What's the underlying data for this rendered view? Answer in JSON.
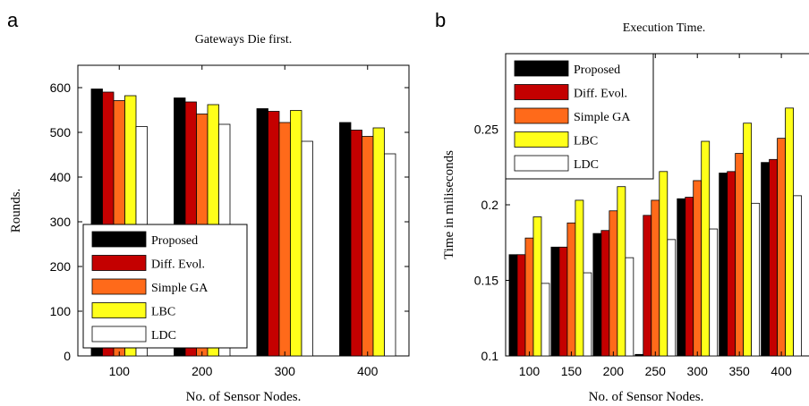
{
  "chart_data": [
    {
      "panel_label": "a",
      "type": "bar",
      "title": "Gateways Die first.",
      "xlabel": "No. of Sensor Nodes.",
      "ylabel": "Rounds.",
      "categories": [
        "100",
        "200",
        "300",
        "400"
      ],
      "ylim": [
        0,
        650
      ],
      "yticks": [
        "0",
        "100",
        "200",
        "300",
        "400",
        "500",
        "600"
      ],
      "legend_position": "bottom-left",
      "series": [
        {
          "name": "Proposed",
          "color": "#000000",
          "values": [
            597,
            577,
            553,
            522
          ]
        },
        {
          "name": "Diff. Evol.",
          "color": "#c40000",
          "values": [
            590,
            568,
            547,
            505
          ]
        },
        {
          "name": "Simple GA",
          "color": "#ff6a1a",
          "values": [
            571,
            541,
            522,
            491
          ]
        },
        {
          "name": "LBC",
          "color": "#ffff1a",
          "values": [
            582,
            562,
            549,
            510
          ]
        },
        {
          "name": "LDC",
          "color": "#ffffff",
          "values": [
            513,
            518,
            480,
            452
          ]
        }
      ]
    },
    {
      "panel_label": "b",
      "type": "bar",
      "title": "Execution Time.",
      "xlabel": "No. of Sensor Nodes.",
      "ylabel": "Time in miliseconds",
      "categories": [
        "100",
        "150",
        "200",
        "250",
        "300",
        "350",
        "400"
      ],
      "ylim": [
        0.1,
        0.3
      ],
      "yticks": [
        "0.1",
        "0.15",
        "0.2",
        "0.25"
      ],
      "legend_position": "top-left",
      "series": [
        {
          "name": "Proposed",
          "color": "#000000",
          "values": [
            0.167,
            0.172,
            0.181,
            0.101,
            0.204,
            0.221,
            0.228
          ]
        },
        {
          "name": "Diff. Evol.",
          "color": "#c40000",
          "values": [
            0.167,
            0.172,
            0.183,
            0.193,
            0.205,
            0.222,
            0.23
          ]
        },
        {
          "name": "Simple GA",
          "color": "#ff6a1a",
          "values": [
            0.178,
            0.188,
            0.196,
            0.203,
            0.216,
            0.234,
            0.244
          ]
        },
        {
          "name": "LBC",
          "color": "#ffff1a",
          "values": [
            0.192,
            0.203,
            0.212,
            0.222,
            0.242,
            0.254,
            0.264
          ]
        },
        {
          "name": "LDC",
          "color": "#ffffff",
          "values": [
            0.148,
            0.155,
            0.165,
            0.177,
            0.184,
            0.201,
            0.206
          ]
        }
      ]
    }
  ]
}
